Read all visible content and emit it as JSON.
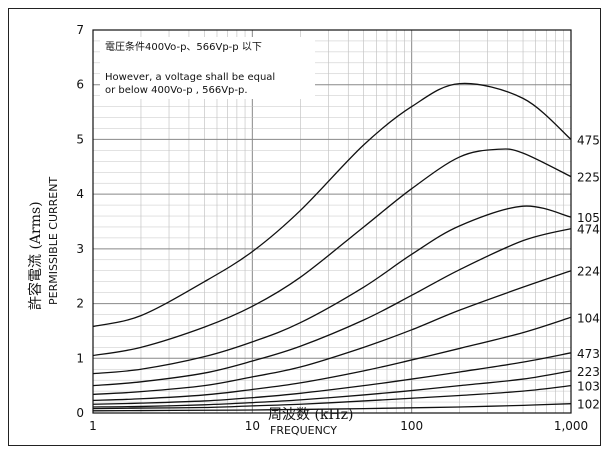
{
  "chart_data": {
    "type": "line",
    "x_scale": "log",
    "xlim": [
      1,
      1000
    ],
    "ylim": [
      0,
      7
    ],
    "x_ticks": [
      "1",
      "10",
      "100",
      "1,000"
    ],
    "y_ticks": [
      "0",
      "1",
      "2",
      "3",
      "4",
      "5",
      "6",
      "7"
    ],
    "xlabel": "周波数 (kHz)",
    "xlabel_en": "FREQUENCY",
    "ylabel": "許容電流 (Arms)",
    "ylabel_en": "PERMISSIBLE CURRENT",
    "grid": true,
    "annotations": [
      "電圧条件400Vo-p、566Vp-p 以下",
      "However, a voltage shall be equal",
      "or below 400Vo-p , 566Vp-p."
    ],
    "series": [
      {
        "name": "475",
        "x": [
          1,
          2,
          5,
          10,
          20,
          50,
          100,
          200,
          500,
          1000
        ],
        "y": [
          1.58,
          1.78,
          2.4,
          2.95,
          3.7,
          4.9,
          5.6,
          6.02,
          5.75,
          5.0
        ]
      },
      {
        "name": "225",
        "x": [
          1,
          2,
          5,
          10,
          20,
          50,
          100,
          200,
          350,
          500,
          1000
        ],
        "y": [
          1.05,
          1.2,
          1.57,
          1.95,
          2.48,
          3.4,
          4.1,
          4.68,
          4.82,
          4.75,
          4.32
        ]
      },
      {
        "name": "105",
        "x": [
          1,
          2,
          5,
          10,
          20,
          50,
          100,
          200,
          500,
          1000
        ],
        "y": [
          0.72,
          0.8,
          1.03,
          1.3,
          1.65,
          2.3,
          2.9,
          3.42,
          3.78,
          3.58
        ]
      },
      {
        "name": "474",
        "x": [
          1,
          2,
          5,
          10,
          20,
          50,
          100,
          200,
          500,
          1000
        ],
        "y": [
          0.5,
          0.57,
          0.73,
          0.95,
          1.22,
          1.7,
          2.15,
          2.62,
          3.15,
          3.37
        ]
      },
      {
        "name": "224",
        "x": [
          1,
          2,
          5,
          10,
          20,
          50,
          100,
          200,
          500,
          1000
        ],
        "y": [
          0.34,
          0.39,
          0.5,
          0.66,
          0.84,
          1.2,
          1.52,
          1.88,
          2.3,
          2.6
        ]
      },
      {
        "name": "104",
        "x": [
          1,
          2,
          5,
          10,
          20,
          50,
          100,
          200,
          500,
          1000
        ],
        "y": [
          0.23,
          0.26,
          0.33,
          0.43,
          0.55,
          0.77,
          0.97,
          1.18,
          1.47,
          1.75
        ]
      },
      {
        "name": "473",
        "x": [
          1,
          2,
          5,
          10,
          20,
          50,
          100,
          200,
          500,
          1000
        ],
        "y": [
          0.16,
          0.18,
          0.22,
          0.28,
          0.36,
          0.5,
          0.62,
          0.75,
          0.93,
          1.1
        ]
      },
      {
        "name": "223",
        "x": [
          1,
          2,
          5,
          10,
          20,
          50,
          100,
          200,
          500,
          1000
        ],
        "y": [
          0.11,
          0.12,
          0.15,
          0.19,
          0.24,
          0.33,
          0.41,
          0.5,
          0.62,
          0.77
        ]
      },
      {
        "name": "103",
        "x": [
          1,
          2,
          5,
          10,
          20,
          50,
          100,
          200,
          500,
          1000
        ],
        "y": [
          0.08,
          0.09,
          0.1,
          0.13,
          0.16,
          0.22,
          0.27,
          0.32,
          0.4,
          0.5
        ]
      },
      {
        "name": "102",
        "x": [
          1,
          2,
          5,
          10,
          20,
          50,
          100,
          200,
          500,
          1000
        ],
        "y": [
          0.04,
          0.045,
          0.05,
          0.055,
          0.065,
          0.08,
          0.095,
          0.11,
          0.14,
          0.17
        ]
      }
    ]
  }
}
